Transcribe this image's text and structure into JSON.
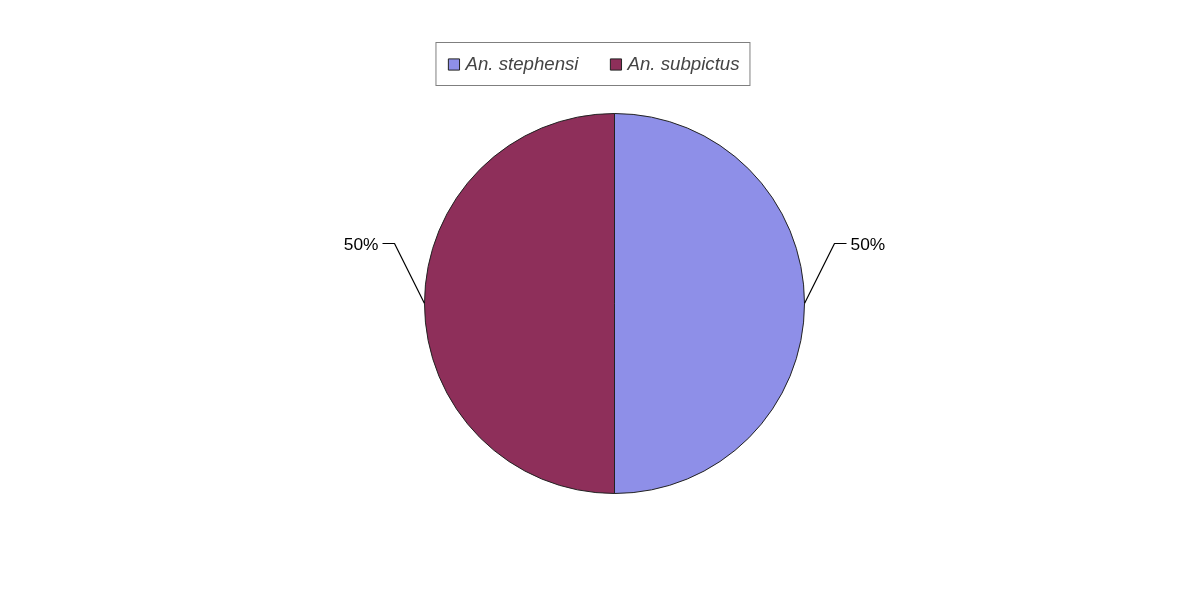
{
  "chart_data": {
    "type": "pie",
    "categories": [
      "An. stephensi",
      "An. subpictus"
    ],
    "values": [
      50,
      50
    ],
    "colors": [
      "#8e8fe8",
      "#8e2f5a"
    ],
    "value_labels": [
      "50%",
      "50%"
    ],
    "legend": "top"
  }
}
